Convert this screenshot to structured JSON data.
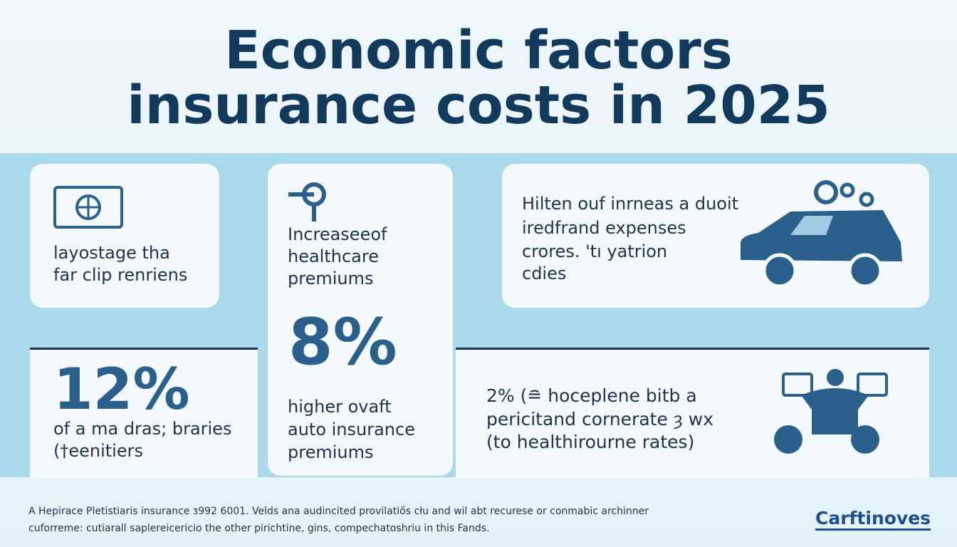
{
  "header": {
    "title_lines": [
      "Economic factors",
      "insurance costs in 2025"
    ]
  },
  "cards": [
    {
      "lines": [
        "layostage tha",
        "far clip renriens"
      ]
    },
    {
      "intro_lines": [
        "Increaseeof",
        "healthcare",
        "premiums"
      ],
      "stat": "8%",
      "lines": [
        "higher ovaft",
        "auto insurance",
        "premiums"
      ]
    },
    {
      "lines": [
        "Hilten ouf inrneas a duoit",
        "iredfrand expenses",
        "crores. 'tı yatrion",
        "cdies"
      ]
    },
    {
      "stat": "12%",
      "lines": [
        "of a ma dras; braries",
        "(†eenitiers"
      ]
    },
    {
      "lines": [
        "2% (≘ hoceplene bitb a",
        "pericitand cornerate ȝ wx",
        "(to healthirourne rates)"
      ]
    }
  ],
  "footer": {
    "lines": [
      "A Hepirace Pletistiaris insurance ᴣ992 6001. Velds ana audincited provilatiốs cłu and wil abt recurese or conmabic archinner",
      "cuforreme: cutiarall saplereicericio the other pirichtine, gins, compechatoshriu in this Fands."
    ],
    "brand": "Carftinoves"
  }
}
